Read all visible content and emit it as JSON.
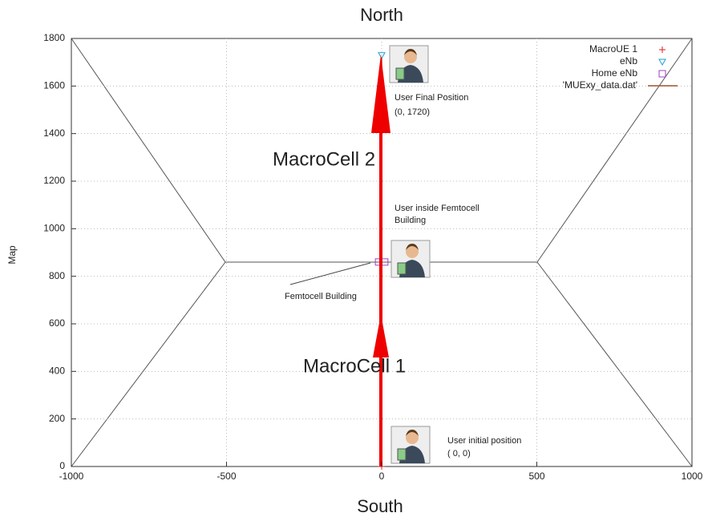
{
  "chart_data": {
    "type": "scatter",
    "title": "North",
    "xlabel": "South",
    "ylabel": "Map",
    "xlim": [
      -1000,
      1000
    ],
    "ylim": [
      0,
      1800
    ],
    "xticks": [
      -1000,
      -500,
      0,
      500,
      1000
    ],
    "yticks": [
      0,
      200,
      400,
      600,
      800,
      1000,
      1200,
      1400,
      1600,
      1800
    ],
    "grid": true,
    "legend": "top-right",
    "series": [
      {
        "name": "MacroUE 1",
        "color": "#e41a1c",
        "marker": "plus",
        "x": [
          0
        ],
        "values": [
          0
        ]
      },
      {
        "name": "eNb",
        "color": "#1e9ed6",
        "marker": "triangle",
        "x": [
          0
        ],
        "values": [
          1730
        ]
      },
      {
        "name": "Home eNb",
        "color": "#a040c0",
        "marker": "square",
        "x": [
          -10,
          10
        ],
        "values": [
          860,
          860
        ]
      },
      {
        "name": "'MUExy_data.dat'",
        "color": "#a0522d",
        "marker": "line",
        "x": [
          0,
          0
        ],
        "values": [
          0,
          1720
        ]
      }
    ],
    "annotations": [
      "MacroCell  2",
      "MacroCell  1",
      "User Final Position",
      "(0, 1720)",
      "User inside Femtocell",
      "Building",
      "Femtocell Building",
      "User initial position",
      "( 0, 0)"
    ]
  }
}
